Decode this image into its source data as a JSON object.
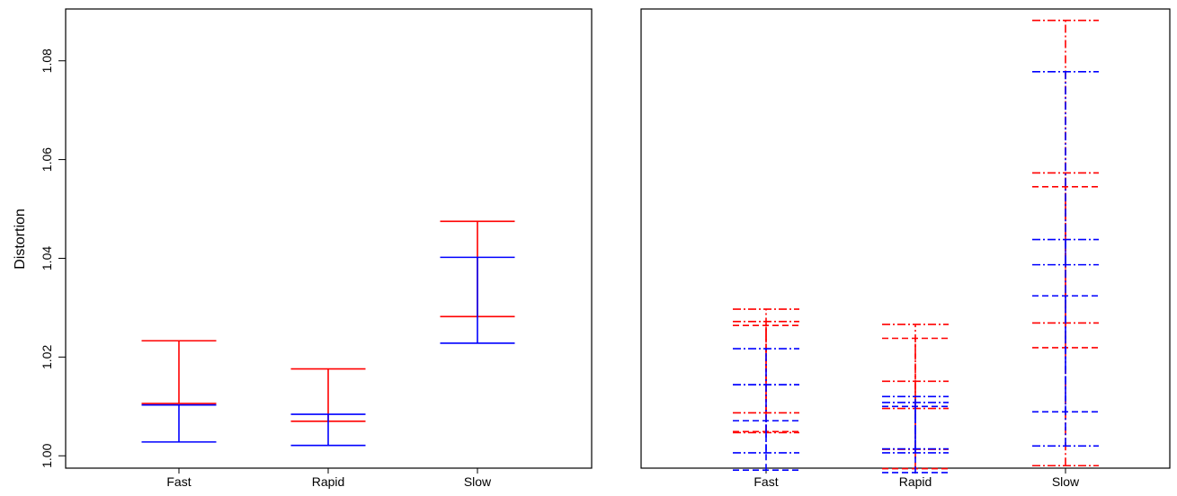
{
  "chart_data": [
    {
      "type": "errorbar",
      "title": "",
      "xlabel": "",
      "ylabel": "Distortion",
      "categories": [
        "Fast",
        "Rapid",
        "Slow"
      ],
      "yticks": [
        "1.00",
        "1.02",
        "1.04",
        "1.06",
        "1.08"
      ],
      "ylim": [
        0.9975,
        1.0905
      ],
      "grid": false,
      "series": [
        {
          "color": "#ff0000",
          "intervals": [
            [
              1.0106,
              1.0233
            ],
            [
              1.007,
              1.0176
            ],
            [
              1.0282,
              1.0475
            ]
          ]
        },
        {
          "color": "#0000ff",
          "intervals": [
            [
              1.0028,
              1.0103
            ],
            [
              1.0021,
              1.0084
            ],
            [
              1.0228,
              1.0402
            ]
          ]
        }
      ]
    },
    {
      "type": "errorbar",
      "title": "",
      "xlabel": "",
      "ylabel": "",
      "categories": [
        "Fast",
        "Rapid",
        "Slow"
      ],
      "ylim": [
        0.9975,
        1.0905
      ],
      "grid": false,
      "series": [
        {
          "color": "#ff0000",
          "dash": "dashdot",
          "intervals": [
            [
              1.0047,
              1.0297
            ],
            [
              1.0013,
              1.0266
            ],
            [
              1.0269,
              1.0882
            ]
          ]
        },
        {
          "color": "#ff0000",
          "dash": "dashed",
          "intervals": [
            [
              1.0049,
              1.0264
            ],
            [
              0.9974,
              1.0238
            ],
            [
              1.0219,
              1.0545
            ]
          ]
        },
        {
          "color": "#ff0000",
          "dash": "dashdot",
          "intervals": [
            [
              1.0087,
              1.0272
            ],
            [
              1.0096,
              1.0151
            ],
            [
              0.998,
              1.0573
            ]
          ]
        },
        {
          "color": "#0000ff",
          "dash": "dashdot",
          "intervals": [
            [
              1.0006,
              1.0217
            ],
            [
              1.0006,
              1.012
            ],
            [
              1.002,
              1.0778
            ]
          ]
        },
        {
          "color": "#0000ff",
          "dash": "dashed",
          "intervals": [
            [
              0.9971,
              1.0071
            ],
            [
              0.9966,
              1.01
            ],
            [
              1.0089,
              1.0324
            ]
          ]
        },
        {
          "color": "#0000ff",
          "dash": "dashdot",
          "intervals": [
            [
              1.0144,
              1.0144
            ],
            [
              1.0014,
              1.0108
            ],
            [
              1.0387,
              1.0438
            ]
          ]
        }
      ]
    }
  ]
}
